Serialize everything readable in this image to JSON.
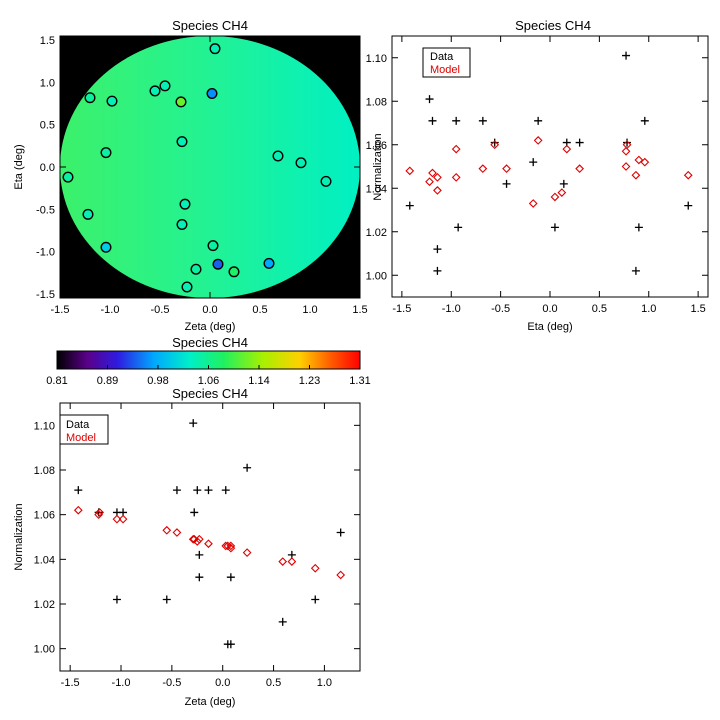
{
  "colors": {
    "data_marker": "#000000",
    "model_marker": "#e00000",
    "map_background": "#000000",
    "map_fill": "#2ef58a"
  },
  "chart_data": [
    {
      "id": "map",
      "type": "scatter",
      "title": "Species CH4",
      "xlabel": "Zeta (deg)",
      "ylabel": "Eta (deg)",
      "xlim": [
        -1.5,
        1.5
      ],
      "ylim": [
        -1.55,
        1.55
      ],
      "xticks": [
        -1.5,
        -1.0,
        -0.5,
        0.0,
        0.5,
        1.0,
        1.5
      ],
      "xtick_labels": [
        "-1.5",
        "-1.0",
        "-0.5",
        "0.0",
        "0.5",
        "1.0",
        "1.5"
      ],
      "yticks": [
        -1.5,
        -1.0,
        -0.5,
        0.0,
        0.5,
        1.0,
        1.5
      ],
      "ytick_labels": [
        "-1.5",
        "-1.0",
        "-0.5",
        "0.0",
        "0.5",
        "1.0",
        "1.5"
      ],
      "note": "circle field colored by normalization, points colored by observed normalization",
      "points": [
        {
          "x": 0.05,
          "y": 1.4,
          "c": 1.04
        },
        {
          "x": -1.2,
          "y": 0.82,
          "c": 1.05
        },
        {
          "x": -0.98,
          "y": 0.78,
          "c": 1.04
        },
        {
          "x": -0.55,
          "y": 0.9,
          "c": 1.04
        },
        {
          "x": -0.45,
          "y": 0.96,
          "c": 1.04
        },
        {
          "x": -0.29,
          "y": 0.77,
          "c": 1.12
        },
        {
          "x": 0.02,
          "y": 0.87,
          "c": 0.96
        },
        {
          "x": -1.04,
          "y": 0.17,
          "c": 1.05
        },
        {
          "x": -0.28,
          "y": 0.3,
          "c": 1.04
        },
        {
          "x": 0.68,
          "y": 0.13,
          "c": 1.04
        },
        {
          "x": 0.91,
          "y": 0.05,
          "c": 1.04
        },
        {
          "x": 1.16,
          "y": -0.17,
          "c": 1.04
        },
        {
          "x": -1.42,
          "y": -0.12,
          "c": 1.05
        },
        {
          "x": -0.25,
          "y": -0.44,
          "c": 1.04
        },
        {
          "x": -1.22,
          "y": -0.56,
          "c": 1.04
        },
        {
          "x": -0.28,
          "y": -0.68,
          "c": 1.04
        },
        {
          "x": -1.04,
          "y": -0.95,
          "c": 1.0
        },
        {
          "x": 0.03,
          "y": -0.93,
          "c": 1.05
        },
        {
          "x": 0.08,
          "y": -1.15,
          "c": 0.94
        },
        {
          "x": 0.59,
          "y": -1.14,
          "c": 0.97
        },
        {
          "x": -0.14,
          "y": -1.21,
          "c": 1.05
        },
        {
          "x": 0.24,
          "y": -1.24,
          "c": 1.08
        },
        {
          "x": -0.23,
          "y": -1.42,
          "c": 1.04
        }
      ]
    },
    {
      "id": "colorbar",
      "type": "heatmap",
      "title": "Species CH4",
      "range": [
        0.81,
        1.31
      ],
      "tick_labels": [
        "0.81",
        "0.89",
        "0.98",
        "1.06",
        "1.14",
        "1.23",
        "1.31"
      ]
    },
    {
      "id": "eta",
      "type": "scatter",
      "title": "Species CH4",
      "xlabel": "Eta (deg)",
      "ylabel": "Normalization",
      "xlim": [
        -1.6,
        1.6
      ],
      "ylim": [
        0.99,
        1.11
      ],
      "xticks": [
        -1.5,
        -1.0,
        -0.5,
        0.0,
        0.5,
        1.0,
        1.5
      ],
      "xtick_labels": [
        "-1.5",
        "-1.0",
        "-0.5",
        "0.0",
        "0.5",
        "1.0",
        "1.5"
      ],
      "yticks": [
        1.0,
        1.02,
        1.04,
        1.06,
        1.08,
        1.1
      ],
      "ytick_labels": [
        "1.00",
        "1.02",
        "1.04",
        "1.06",
        "1.08",
        "1.10"
      ],
      "legend": {
        "position": "top-left",
        "entries": [
          "Data",
          "Model"
        ]
      },
      "series": [
        {
          "name": "Data",
          "marker": "plus",
          "points": [
            {
              "x": -1.42,
              "y": 1.032
            },
            {
              "x": -1.22,
              "y": 1.081
            },
            {
              "x": -1.19,
              "y": 1.071
            },
            {
              "x": -1.14,
              "y": 1.012
            },
            {
              "x": -1.14,
              "y": 1.002
            },
            {
              "x": -0.95,
              "y": 1.071
            },
            {
              "x": -0.93,
              "y": 1.022
            },
            {
              "x": -0.68,
              "y": 1.071
            },
            {
              "x": -0.56,
              "y": 1.061
            },
            {
              "x": -0.44,
              "y": 1.042
            },
            {
              "x": -0.17,
              "y": 1.052
            },
            {
              "x": -0.12,
              "y": 1.071
            },
            {
              "x": 0.05,
              "y": 1.022
            },
            {
              "x": 0.14,
              "y": 1.042
            },
            {
              "x": 0.17,
              "y": 1.061
            },
            {
              "x": 0.3,
              "y": 1.061
            },
            {
              "x": 0.77,
              "y": 1.101
            },
            {
              "x": 0.78,
              "y": 1.061
            },
            {
              "x": 0.87,
              "y": 1.002
            },
            {
              "x": 0.9,
              "y": 1.022
            },
            {
              "x": 0.96,
              "y": 1.071
            },
            {
              "x": 1.4,
              "y": 1.032
            }
          ]
        },
        {
          "name": "Model",
          "marker": "diamond",
          "points": [
            {
              "x": -1.42,
              "y": 1.048
            },
            {
              "x": -1.22,
              "y": 1.043
            },
            {
              "x": -1.19,
              "y": 1.047
            },
            {
              "x": -1.14,
              "y": 1.039
            },
            {
              "x": -1.14,
              "y": 1.045
            },
            {
              "x": -0.95,
              "y": 1.045
            },
            {
              "x": -0.95,
              "y": 1.058
            },
            {
              "x": -0.68,
              "y": 1.049
            },
            {
              "x": -0.56,
              "y": 1.06
            },
            {
              "x": -0.44,
              "y": 1.049
            },
            {
              "x": -0.17,
              "y": 1.033
            },
            {
              "x": -0.12,
              "y": 1.062
            },
            {
              "x": 0.05,
              "y": 1.036
            },
            {
              "x": 0.12,
              "y": 1.038
            },
            {
              "x": 0.17,
              "y": 1.058
            },
            {
              "x": 0.3,
              "y": 1.049
            },
            {
              "x": 0.77,
              "y": 1.05
            },
            {
              "x": 0.77,
              "y": 1.057
            },
            {
              "x": 0.78,
              "y": 1.06
            },
            {
              "x": 0.87,
              "y": 1.046
            },
            {
              "x": 0.9,
              "y": 1.053
            },
            {
              "x": 0.96,
              "y": 1.052
            },
            {
              "x": 1.4,
              "y": 1.046
            }
          ]
        }
      ]
    },
    {
      "id": "zeta",
      "type": "scatter",
      "title": "Species CH4",
      "xlabel": "Zeta (deg)",
      "ylabel": "Normalization",
      "xlim": [
        -1.6,
        1.35
      ],
      "ylim": [
        0.99,
        1.11
      ],
      "xticks": [
        -1.5,
        -1.0,
        -0.5,
        0.0,
        0.5,
        1.0
      ],
      "xtick_labels": [
        "-1.5",
        "-1.0",
        "-0.5",
        "0.0",
        "0.5",
        "1.0"
      ],
      "yticks": [
        1.0,
        1.02,
        1.04,
        1.06,
        1.08,
        1.1
      ],
      "ytick_labels": [
        "1.00",
        "1.02",
        "1.04",
        "1.06",
        "1.08",
        "1.10"
      ],
      "legend": {
        "position": "top-left",
        "entries": [
          "Data",
          "Model"
        ]
      },
      "series": [
        {
          "name": "Data",
          "marker": "plus",
          "points": [
            {
              "x": -1.42,
              "y": 1.071
            },
            {
              "x": -1.22,
              "y": 1.061
            },
            {
              "x": -1.04,
              "y": 1.061
            },
            {
              "x": -0.98,
              "y": 1.061
            },
            {
              "x": -1.04,
              "y": 1.022
            },
            {
              "x": -0.55,
              "y": 1.022
            },
            {
              "x": -0.45,
              "y": 1.071
            },
            {
              "x": -0.29,
              "y": 1.101
            },
            {
              "x": -0.28,
              "y": 1.061
            },
            {
              "x": -0.25,
              "y": 1.071
            },
            {
              "x": -0.23,
              "y": 1.042
            },
            {
              "x": -0.23,
              "y": 1.032
            },
            {
              "x": -0.14,
              "y": 1.071
            },
            {
              "x": 0.03,
              "y": 1.071
            },
            {
              "x": 0.05,
              "y": 1.002
            },
            {
              "x": 0.08,
              "y": 1.032
            },
            {
              "x": 0.08,
              "y": 1.002
            },
            {
              "x": 0.24,
              "y": 1.081
            },
            {
              "x": 0.59,
              "y": 1.012
            },
            {
              "x": 0.68,
              "y": 1.042
            },
            {
              "x": 0.91,
              "y": 1.022
            },
            {
              "x": 1.16,
              "y": 1.052
            }
          ]
        },
        {
          "name": "Model",
          "marker": "diamond",
          "points": [
            {
              "x": -1.42,
              "y": 1.062
            },
            {
              "x": -1.22,
              "y": 1.06
            },
            {
              "x": -1.21,
              "y": 1.061
            },
            {
              "x": -1.04,
              "y": 1.058
            },
            {
              "x": -0.98,
              "y": 1.058
            },
            {
              "x": -0.55,
              "y": 1.053
            },
            {
              "x": -0.45,
              "y": 1.052
            },
            {
              "x": -0.29,
              "y": 1.049
            },
            {
              "x": -0.28,
              "y": 1.049
            },
            {
              "x": -0.25,
              "y": 1.048
            },
            {
              "x": -0.23,
              "y": 1.049
            },
            {
              "x": -0.14,
              "y": 1.047
            },
            {
              "x": 0.03,
              "y": 1.046
            },
            {
              "x": 0.05,
              "y": 1.046
            },
            {
              "x": 0.08,
              "y": 1.045
            },
            {
              "x": 0.08,
              "y": 1.046
            },
            {
              "x": 0.24,
              "y": 1.043
            },
            {
              "x": 0.59,
              "y": 1.039
            },
            {
              "x": 0.68,
              "y": 1.039
            },
            {
              "x": 0.91,
              "y": 1.036
            },
            {
              "x": 1.16,
              "y": 1.033
            }
          ]
        }
      ]
    }
  ]
}
